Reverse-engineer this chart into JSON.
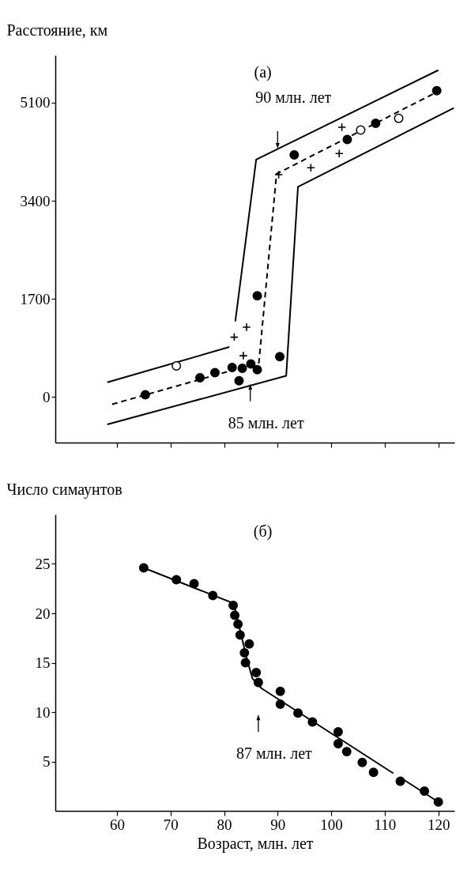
{
  "chart_data": [
    {
      "type": "scatter",
      "title": "(a)",
      "ylabel": "Расстояние, км",
      "xlim": [
        48.5,
        123
      ],
      "ylim": [
        -790,
        5920
      ],
      "xticks": [
        60,
        70,
        80,
        90,
        100,
        110,
        120
      ],
      "yticks": [
        0,
        1700,
        3400,
        5100
      ],
      "tick_labels": "y",
      "series": [
        {
          "type": "line",
          "line_style": "solid",
          "marker": "none",
          "color": "#000000",
          "x": [
            58.2,
            81.0,
            81.5,
            82.1,
            86.0,
            120.0
          ],
          "values": [
            254,
            867,
            null,
            1309,
            4115,
            5663
          ]
        },
        {
          "type": "line",
          "line_style": "dashed",
          "marker": "none",
          "color": "#000000",
          "x": [
            59.1,
            86.5,
            89.8,
            120.7
          ],
          "values": [
            -127,
            593,
            3866,
            5330
          ]
        },
        {
          "type": "line",
          "line_style": "solid",
          "marker": "none",
          "color": "#000000",
          "x": [
            58.2,
            91.6,
            93.8,
            122.9
          ],
          "values": [
            -475,
            366,
            3643,
            5007
          ]
        },
        {
          "type": "scatter",
          "marker": "circle",
          "color": "#000000",
          "x": [
            65.3,
            75.5,
            78.3,
            81.5,
            82.8,
            83.4,
            85.0,
            86.2,
            86.2,
            90.4,
            93.1,
            103.0,
            108.3,
            119.7
          ],
          "values": [
            40,
            333,
            422,
            511,
            282,
            498,
            572,
            473,
            1754,
            699,
            4194,
            4463,
            4743,
            5307
          ]
        },
        {
          "type": "scatter",
          "marker": "circle",
          "color": "#ffffff",
          "x": [
            71.1,
            105.5,
            112.6
          ],
          "values": [
            539,
            4626,
            4829
          ]
        },
        {
          "type": "scatter",
          "marker": "cross",
          "color": "#000000",
          "x": [
            81.9,
            84.2,
            83.6,
            90.2,
            96.2,
            101.5,
            102.0
          ],
          "values": [
            1037,
            1210,
            715,
            3853,
            3972,
            4219,
            4674
          ]
        }
      ],
      "annotations": [
        {
          "text": "90 млн. лет",
          "x": 90.0,
          "y": 4330
        },
        {
          "text": "85 млн. лет",
          "x": 84.9,
          "y": 198
        }
      ]
    },
    {
      "type": "scatter",
      "title": "(б)",
      "xlabel": "Возраст, млн. лет",
      "ylabel": "Число симаунтов",
      "xlim": [
        48.5,
        123
      ],
      "ylim": [
        0,
        30
      ],
      "xticks": [
        60,
        70,
        80,
        90,
        100,
        110,
        120
      ],
      "yticks": [
        5,
        10,
        15,
        20,
        25
      ],
      "series": [
        {
          "type": "line",
          "line_style": "solid",
          "marker": "none",
          "color": "#000000",
          "x": [
            65,
            81.8,
            84.3,
            85.3,
            87,
            111.6,
            112.3,
            113.4,
            120.3
          ],
          "values": [
            24.6,
            21.0,
            15.3,
            13.4,
            12.4,
            3.8,
            null,
            3.2,
            0.8
          ]
        },
        {
          "type": "scatter",
          "marker": "circle",
          "color": "#000000",
          "x": [
            65.0,
            71.1,
            74.4,
            77.9,
            81.7,
            82.0,
            82.6,
            83.0,
            84.7,
            83.8,
            84.0,
            86.0,
            86.4,
            90.5,
            90.5,
            93.8,
            96.5,
            101.3,
            101.3,
            102.9,
            105.8,
            107.9,
            112.9,
            117.4,
            120.0
          ],
          "values": [
            24.6,
            23.4,
            23.0,
            21.8,
            20.8,
            19.8,
            18.9,
            17.8,
            16.9,
            16.0,
            15.0,
            14.0,
            13.0,
            12.1,
            10.8,
            9.9,
            9.0,
            8.0,
            6.8,
            6.0,
            4.9,
            3.9,
            3.0,
            2.0,
            0.9
          ]
        }
      ],
      "annotations": [
        {
          "text": "87 млн. лет",
          "x": 86.4,
          "y": 9.6
        }
      ]
    }
  ]
}
